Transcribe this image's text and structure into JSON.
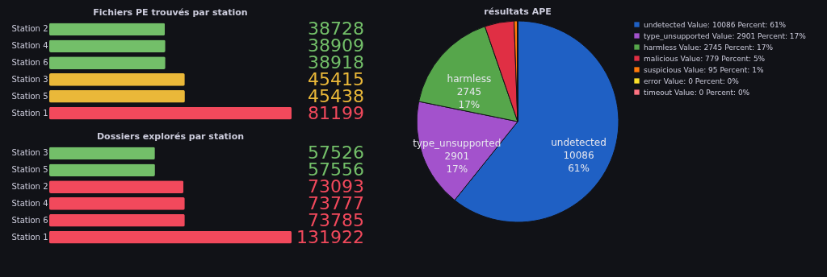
{
  "chart_data": [
    {
      "type": "bar",
      "orientation": "horizontal",
      "title": "Fichiers PE trouvés par station",
      "categories": [
        "Station 2",
        "Station 4",
        "Station 6",
        "Station 3",
        "Station 5",
        "Station 1"
      ],
      "values": [
        38728,
        38909,
        38918,
        45415,
        45438,
        81199
      ],
      "colors": [
        "#73bf69",
        "#73bf69",
        "#73bf69",
        "#eab839",
        "#eab839",
        "#f2495c"
      ],
      "data_labels": true
    },
    {
      "type": "bar",
      "orientation": "horizontal",
      "title": "Dossiers explorés par station",
      "categories": [
        "Station 3",
        "Station 5",
        "Station 2",
        "Station 4",
        "Station 6",
        "Station 1"
      ],
      "values": [
        57526,
        57556,
        73093,
        73777,
        73785,
        131922
      ],
      "colors": [
        "#73bf69",
        "#73bf69",
        "#f2495c",
        "#f2495c",
        "#f2495c",
        "#f2495c"
      ],
      "data_labels": true
    },
    {
      "type": "pie",
      "title": "résultats APE",
      "categories": [
        "undetected",
        "type_unsupported",
        "harmless",
        "malicious",
        "suspicious",
        "error",
        "timeout"
      ],
      "values": [
        10086,
        2901,
        2745,
        779,
        95,
        0,
        0
      ],
      "colors": [
        "#1f60c4",
        "#a352cc",
        "#56a64b",
        "#e02f44",
        "#ff780a",
        "#fade2a",
        "#ff7383"
      ],
      "value_labels": [
        "Value: 10086 Percent: 61%",
        "Value: 2901 Percent: 17%",
        "Value: 2745 Percent: 17%",
        "Value: 779 Percent: 5%",
        "Value: 95 Percent: 1%",
        "Value: 0 Percent: 0%",
        "Value: 0 Percent: 0%"
      ],
      "annotations": [
        {
          "text": "10086",
          "x": "undetected"
        },
        {
          "text": "61%",
          "x": "undetected"
        },
        {
          "text": "2901",
          "x": "type_unsupported"
        },
        {
          "text": "17%",
          "x": "type_unsupported"
        },
        {
          "text": "2745",
          "x": "harmless"
        },
        {
          "text": "17%",
          "x": "harmless"
        }
      ],
      "legend": "top right"
    }
  ]
}
